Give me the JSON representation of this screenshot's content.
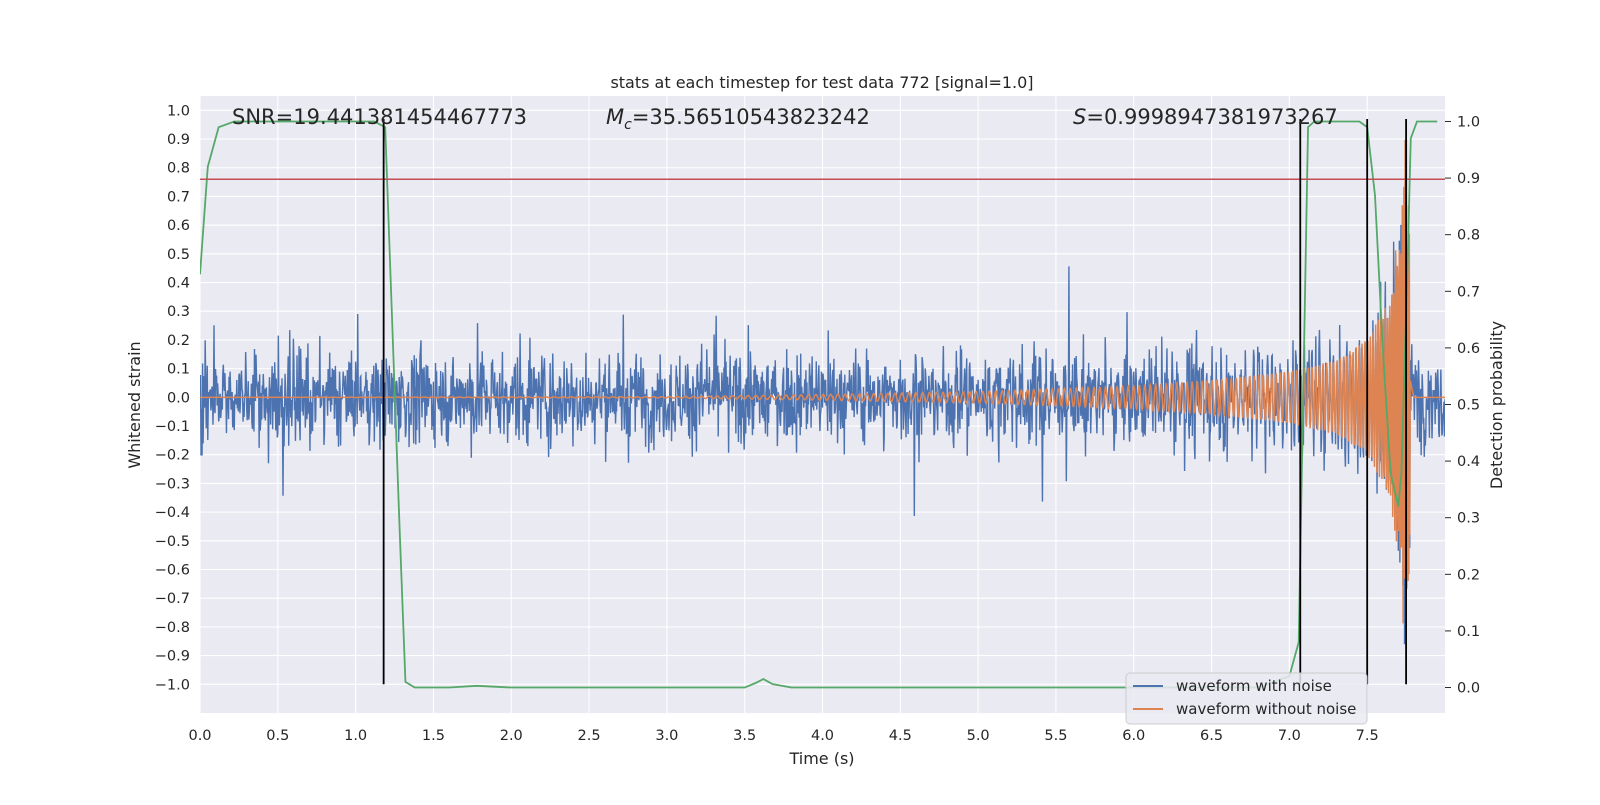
{
  "chart_data": {
    "type": "line",
    "title": "stats at each timestep for test data 772 [signal=1.0]",
    "xlabel": "Time (s)",
    "ylabel": "Whitened strain",
    "y2label": "Detection probability",
    "xlim": [
      0.0,
      8.0
    ],
    "ylim": [
      -1.1,
      1.05
    ],
    "y2lim": [
      -0.045,
      1.045
    ],
    "xticks": [
      "0.0",
      "0.5",
      "1.0",
      "1.5",
      "2.0",
      "2.5",
      "3.0",
      "3.5",
      "4.0",
      "4.5",
      "5.0",
      "5.5",
      "6.0",
      "6.5",
      "7.0",
      "7.5"
    ],
    "yticks": [
      "1.0",
      "0.9",
      "0.8",
      "0.7",
      "0.6",
      "0.5",
      "0.4",
      "0.3",
      "0.2",
      "0.1",
      "0.0",
      "−0.1",
      "−0.2",
      "−0.3",
      "−0.4",
      "−0.5",
      "−0.6",
      "−0.7",
      "−0.8",
      "−0.9",
      "−1.0"
    ],
    "y2ticks": [
      "1.0",
      "0.9",
      "0.8",
      "0.7",
      "0.6",
      "0.5",
      "0.4",
      "0.3",
      "0.2",
      "0.1",
      "0.0"
    ],
    "annotations": {
      "snr": "SNR=19.441381454467773",
      "mc_symbol": "M",
      "mc_sub": "c",
      "mc_value": "=35.56510543823242",
      "s_symbol": "S",
      "s_value": "=0.9998947381973267"
    },
    "legend": {
      "placement": "lower right",
      "entries": [
        {
          "label": "waveform with noise",
          "color": "#4c72b0"
        },
        {
          "label": "waveform without noise",
          "color": "#dd8452"
        }
      ]
    },
    "series": [
      {
        "name": "waveform with noise",
        "color": "#4c72b0",
        "axis": "left",
        "noise_amplitude_typical": 0.25,
        "noise_amplitude_peak": 0.5
      },
      {
        "name": "waveform without noise",
        "color": "#dd8452",
        "axis": "left",
        "envelope": [
          [
            0.0,
            0.0
          ],
          [
            3.0,
            0.002
          ],
          [
            4.0,
            0.01
          ],
          [
            5.0,
            0.02
          ],
          [
            6.0,
            0.04
          ],
          [
            6.5,
            0.06
          ],
          [
            7.0,
            0.09
          ],
          [
            7.3,
            0.13
          ],
          [
            7.5,
            0.2
          ],
          [
            7.65,
            0.35
          ],
          [
            7.72,
            0.7
          ],
          [
            7.75,
            0.95
          ],
          [
            7.78,
            0.4
          ],
          [
            7.8,
            0.0
          ]
        ]
      },
      {
        "color": "#55a868",
        "axis": "right",
        "x": [
          0.0,
          0.05,
          0.12,
          0.22,
          0.4,
          1.0,
          1.12,
          1.19,
          1.28,
          1.32,
          1.38,
          1.6,
          1.78,
          2.0,
          3.0,
          3.5,
          3.57,
          3.62,
          3.68,
          3.8,
          5.0,
          6.0,
          6.8,
          7.0,
          7.06,
          7.12,
          7.16,
          7.22,
          7.3,
          7.45,
          7.5,
          7.55,
          7.6,
          7.65,
          7.7,
          7.72,
          7.76,
          7.78,
          7.82,
          7.88,
          7.95
        ],
        "y": [
          0.73,
          0.92,
          0.99,
          1.0,
          1.0,
          1.0,
          1.0,
          0.99,
          0.3,
          0.01,
          0.0,
          0.0,
          0.003,
          0.0,
          0.0,
          0.0,
          0.008,
          0.015,
          0.006,
          0.0,
          0.0,
          0.0,
          0.0,
          0.02,
          0.08,
          0.99,
          1.0,
          1.0,
          1.0,
          1.0,
          0.99,
          0.87,
          0.6,
          0.38,
          0.32,
          0.38,
          0.75,
          0.97,
          1.0,
          1.0,
          1.0
        ]
      }
    ],
    "hlines": [
      {
        "axis": "left",
        "y": 0.76,
        "color": "#c44e52"
      }
    ],
    "vlines": [
      {
        "x": 1.18,
        "y_from": -1.0,
        "y_to": 0.97,
        "color": "#000000"
      },
      {
        "x": 7.07,
        "y_from": -1.0,
        "y_to": 0.97,
        "color": "#000000"
      },
      {
        "x": 7.5,
        "y_from": -1.0,
        "y_to": 0.97,
        "color": "#000000"
      },
      {
        "x": 7.75,
        "y_from": -1.0,
        "y_to": 0.97,
        "color": "#000000"
      }
    ],
    "grid": true
  }
}
